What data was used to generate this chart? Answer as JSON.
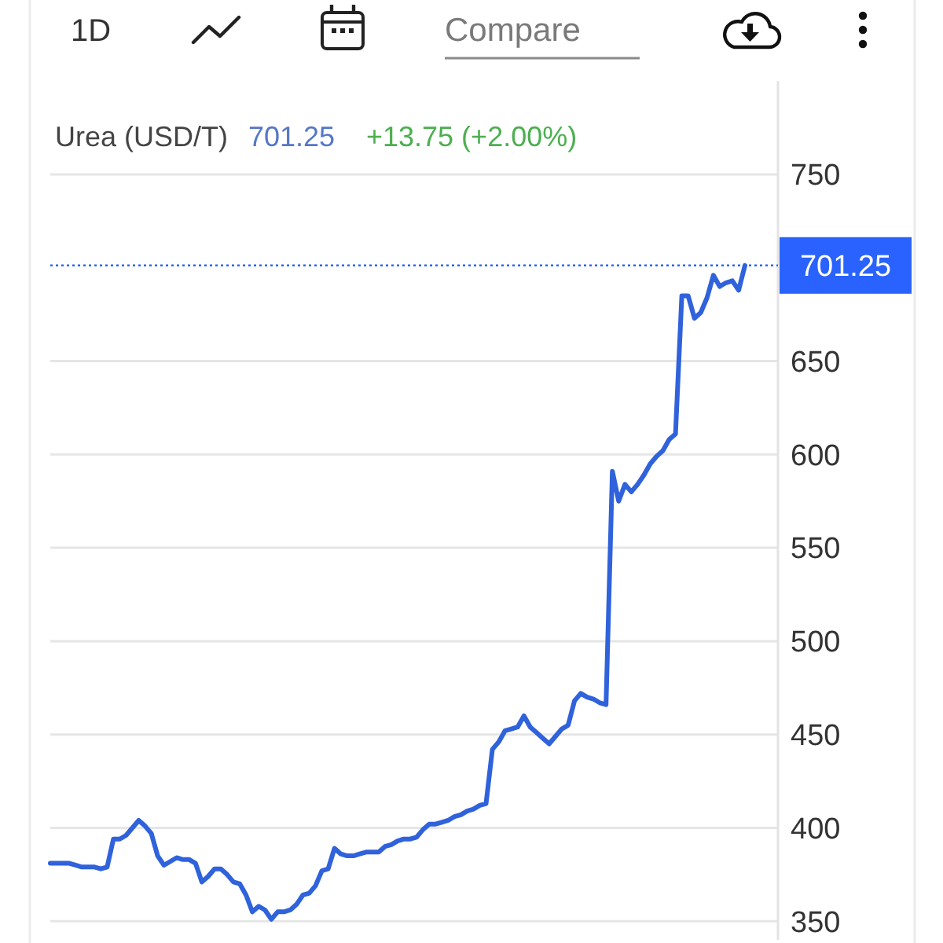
{
  "chart_data": {
    "type": "line",
    "title": "Urea (USD/T)",
    "annotations": [
      "1D",
      "Compare",
      "701.25",
      "+13.75 (+2.00%)"
    ],
    "categories": [
      null,
      null,
      null,
      null,
      null,
      null,
      null,
      null,
      null,
      null,
      null,
      null,
      null,
      null,
      null,
      null,
      null,
      null,
      null,
      null,
      null,
      null,
      null,
      null,
      null,
      null,
      null,
      null,
      null,
      null,
      null,
      null,
      null,
      null,
      null,
      null,
      null,
      null,
      null,
      null,
      null,
      null,
      null,
      null,
      null,
      null,
      null,
      null,
      null,
      null,
      null,
      null,
      null,
      null,
      null,
      null,
      null,
      null,
      null,
      null,
      null,
      null,
      null,
      null,
      null,
      null,
      null,
      null,
      null,
      null,
      null,
      null,
      null,
      null,
      null,
      null,
      null,
      null,
      null,
      null,
      null,
      null,
      null,
      null,
      null,
      null,
      null,
      null,
      null,
      null,
      null,
      null,
      null,
      null,
      null,
      null,
      null,
      null,
      null,
      null,
      null,
      null,
      null,
      null,
      null,
      null,
      null,
      null,
      null,
      null,
      null
    ],
    "values": [
      381,
      381,
      381,
      381,
      380,
      379,
      379,
      379,
      378,
      379,
      394,
      394,
      396,
      400,
      404,
      401,
      397,
      385,
      380,
      382,
      384,
      383,
      383,
      381,
      371,
      374,
      378,
      378,
      375,
      371,
      370,
      364,
      355,
      358,
      356,
      351,
      355,
      355,
      356,
      359,
      364,
      365,
      369,
      377,
      378,
      389,
      386,
      385,
      385,
      386,
      387,
      387,
      387,
      390,
      391,
      393,
      394,
      394,
      395,
      399,
      402,
      402,
      403,
      404,
      406,
      407,
      409,
      410,
      412,
      413,
      442,
      446,
      452,
      453,
      454,
      460,
      454,
      451,
      448,
      445,
      449,
      453,
      455,
      468,
      472,
      470,
      469,
      467,
      466,
      591,
      575,
      584,
      580,
      584,
      589,
      595,
      599,
      602,
      608,
      611,
      685,
      685,
      673,
      676,
      684,
      696,
      690,
      692,
      693,
      688,
      701.25
    ],
    "color": "#2f62db",
    "ylim": [
      340,
      800
    ],
    "yticks": [
      350,
      400,
      450,
      500,
      550,
      600,
      650,
      750
    ],
    "grid": "y",
    "tick_labels": "y",
    "ref_lines": [
      {
        "axis": "y",
        "value": 701.25,
        "label": "701.25",
        "color": "#2962ff",
        "line_style": "dotted"
      }
    ]
  }
}
